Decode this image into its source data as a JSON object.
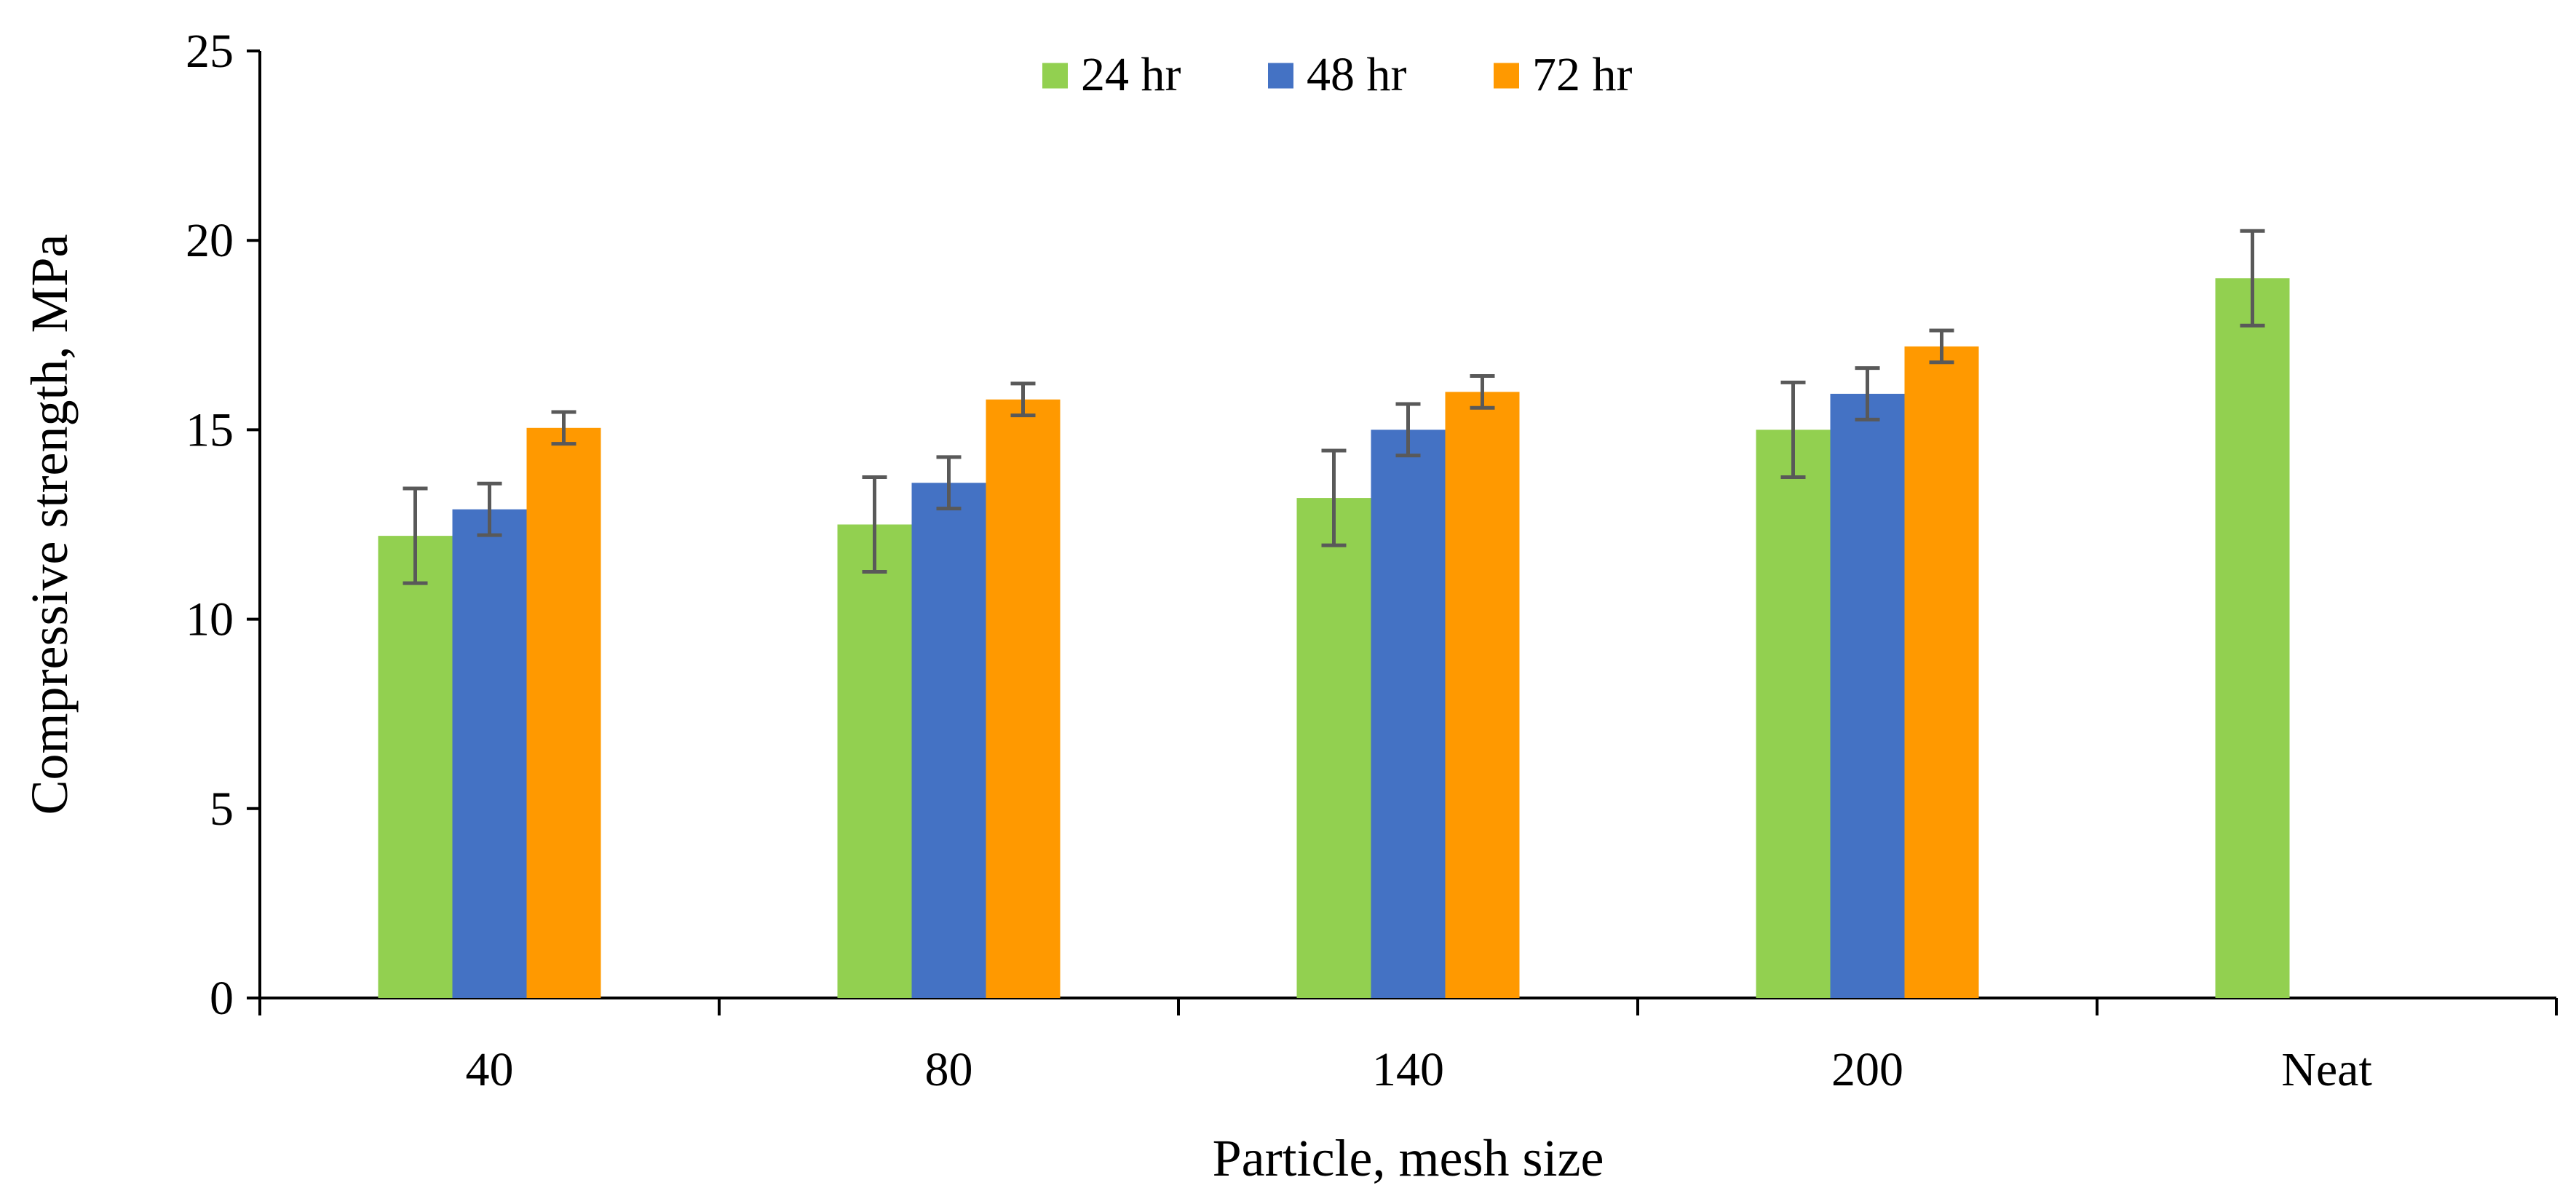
{
  "chart_data": {
    "type": "bar",
    "title": "",
    "xlabel": "Particle, mesh size",
    "ylabel": "Compressive strength, MPa",
    "categories": [
      "40",
      "80",
      "140",
      "200",
      "Neat"
    ],
    "ylim": [
      0,
      25
    ],
    "yticks": [
      "0",
      "5",
      "10",
      "15",
      "20",
      "25"
    ],
    "grid": false,
    "legend_position": "top-center",
    "series": [
      {
        "name": "24 hr",
        "color": "#92d050",
        "values": [
          12.2,
          12.5,
          13.2,
          15.0,
          19.0
        ],
        "errors": [
          1.25,
          1.25,
          1.25,
          1.25,
          1.25
        ]
      },
      {
        "name": "48 hr",
        "color": "#4472c4",
        "values": [
          12.9,
          13.6,
          15.0,
          15.95,
          null
        ],
        "errors": [
          0.68,
          0.68,
          0.68,
          0.68,
          null
        ]
      },
      {
        "name": "72 hr",
        "color": "#ff9900",
        "values": [
          15.05,
          15.8,
          16.0,
          17.2,
          null
        ],
        "errors": [
          0.42,
          0.42,
          0.42,
          0.42,
          null
        ]
      }
    ],
    "error_bar_color": "#595959"
  }
}
